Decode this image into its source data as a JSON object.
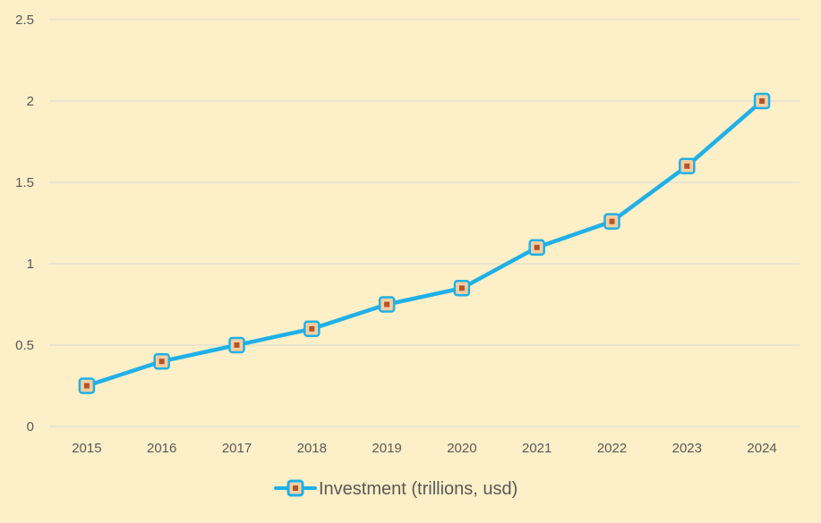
{
  "chart_data": {
    "type": "line",
    "categories": [
      "2015",
      "2016",
      "2017",
      "2018",
      "2019",
      "2020",
      "2021",
      "2022",
      "2023",
      "2024"
    ],
    "series": [
      {
        "name": "Investment (trillions, usd)",
        "values": [
          0.25,
          0.4,
          0.5,
          0.6,
          0.75,
          0.85,
          1.1,
          1.26,
          1.6,
          2.0
        ],
        "line_color": "#1fb0e8",
        "marker_fill": "#f5cfa1",
        "marker_center": "#b5542b"
      }
    ],
    "yticks": [
      "0",
      "0.5",
      "1",
      "1.5",
      "2",
      "2.5"
    ],
    "ylim": [
      0,
      2.5
    ],
    "grid": true,
    "legend_position": "bottom",
    "background_color": "#fdefc7",
    "grid_color": "#d9d9d9",
    "text_color": "#595959"
  }
}
